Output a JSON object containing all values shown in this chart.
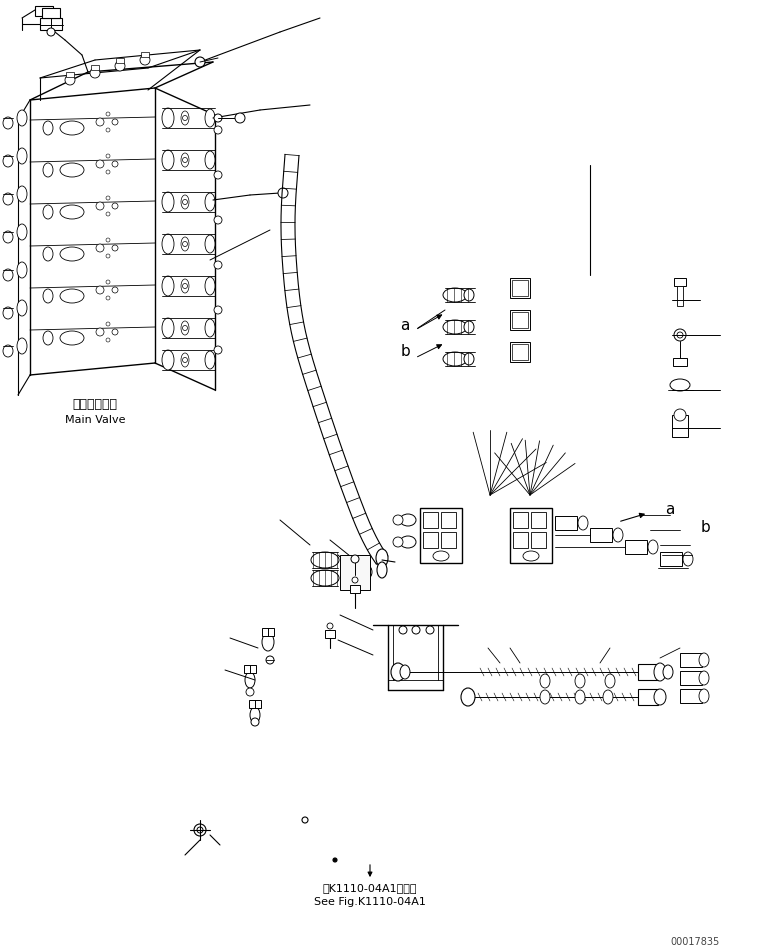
{
  "bg_color": "#ffffff",
  "line_color": "#000000",
  "fig_width": 7.61,
  "fig_height": 9.52,
  "dpi": 100,
  "label_main_valve_jp": "メインバルブ",
  "label_main_valve_en": "Main Valve",
  "label_ref_jp": "第K1110-04A1図参照",
  "label_ref_en": "See Fig.K1110-04A1",
  "label_doc_num": "00017835",
  "label_a1": "a",
  "label_b1": "b",
  "label_a2": "a",
  "label_b2": "b"
}
